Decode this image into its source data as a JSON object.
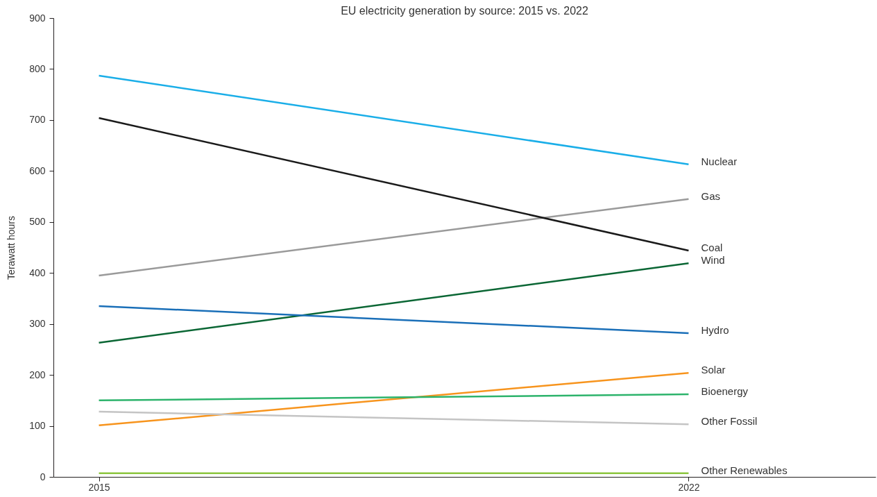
{
  "chart_data": {
    "type": "line",
    "title": "EU electricity generation by source: 2015 vs. 2022",
    "ylabel": "Terawatt hours",
    "x": [
      2015,
      2022
    ],
    "xlim": [
      2014.46,
      2024.22
    ],
    "xticks": [
      2015,
      2022
    ],
    "ylim": [
      0,
      900
    ],
    "yticks": [
      0,
      100,
      200,
      300,
      400,
      500,
      600,
      700,
      800,
      900
    ],
    "grid": false,
    "legend": false,
    "marker": "none",
    "line_style": "solid",
    "series": [
      {
        "name": "Nuclear",
        "color": "#1aaee8",
        "values": [
          787,
          613
        ]
      },
      {
        "name": "Gas",
        "color": "#9a9a9a",
        "values": [
          395,
          545
        ]
      },
      {
        "name": "Coal",
        "color": "#1a1a1a",
        "values": [
          704,
          444
        ]
      },
      {
        "name": "Wind",
        "color": "#0a6634",
        "values": [
          263,
          419
        ]
      },
      {
        "name": "Hydro",
        "color": "#1a6fb8",
        "values": [
          335,
          282
        ]
      },
      {
        "name": "Solar",
        "color": "#f7941d",
        "values": [
          101,
          204
        ]
      },
      {
        "name": "Bioenergy",
        "color": "#2cb36b",
        "values": [
          150,
          162
        ]
      },
      {
        "name": "Other Fossil",
        "color": "#c4c4c4",
        "values": [
          128,
          103
        ]
      },
      {
        "name": "Other Renewables",
        "color": "#8cc63f",
        "values": [
          7,
          7
        ]
      }
    ]
  }
}
